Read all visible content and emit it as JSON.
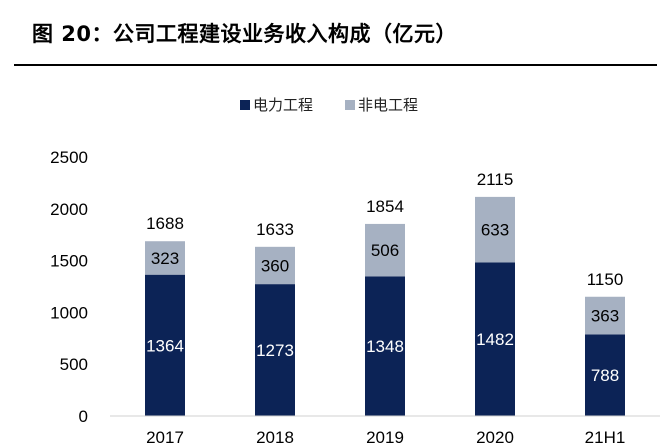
{
  "header": {
    "title": "图 20：公司工程建设业务收入构成（亿元）"
  },
  "colors": {
    "electric": "#0c2356",
    "non_electric": "#a6b1c2"
  },
  "chart_data": {
    "type": "bar",
    "stacked": true,
    "title": "",
    "xlabel": "",
    "ylabel": "",
    "categories": [
      "2017",
      "2018",
      "2019",
      "2020",
      "21H1"
    ],
    "series": [
      {
        "name": "电力工程",
        "values": [
          1364,
          1273,
          1348,
          1482,
          788
        ]
      },
      {
        "name": "非电工程",
        "values": [
          323,
          360,
          506,
          633,
          363
        ]
      }
    ],
    "totals": [
      1688,
      1633,
      1854,
      2115,
      1150
    ],
    "ylim": [
      0,
      2500
    ],
    "yticks": [
      0,
      500,
      1000,
      1500,
      2000,
      2500
    ],
    "grid": false,
    "legend": "top-center"
  }
}
